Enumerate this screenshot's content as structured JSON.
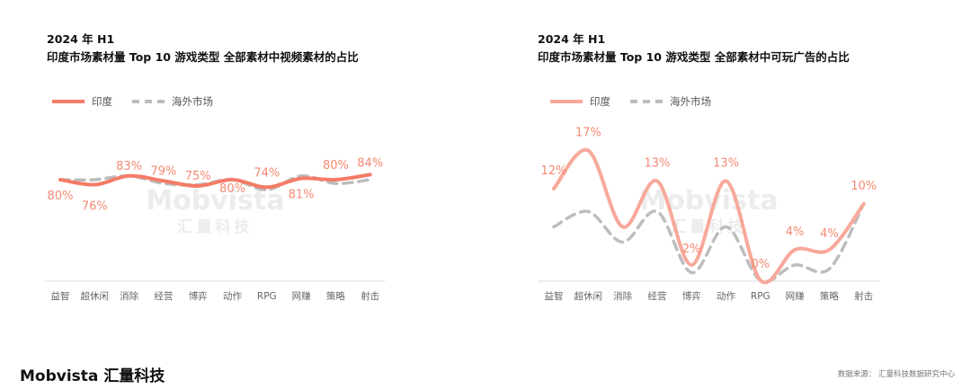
{
  "chart_data": [
    {
      "type": "line",
      "title_line1": "2024 年 H1",
      "title_line2": "印度市场素材量 Top 10 游戏类型  全部素材中视频素材的占比",
      "categories": [
        "益智",
        "超休闲",
        "消除",
        "经营",
        "博弈",
        "动作",
        "RPG",
        "网赚",
        "策略",
        "射击"
      ],
      "series": [
        {
          "name": "印度",
          "color": "#f47b67",
          "dashed": false,
          "values": [
            80,
            76,
            83,
            79,
            75,
            80,
            74,
            81,
            80,
            84
          ],
          "labels": [
            "80%",
            "76%",
            "83%",
            "79%",
            "75%",
            "80%",
            "74%",
            "81%",
            "80%",
            "84%"
          ]
        },
        {
          "name": "海外市场",
          "color": "#bdbdbd",
          "dashed": true,
          "values": [
            80,
            80,
            83,
            77,
            76,
            80,
            72,
            83,
            77,
            80
          ]
        }
      ],
      "ylim": [
        0,
        100
      ],
      "legend": "top-left"
    },
    {
      "type": "line",
      "title_line1": "2024 年 H1",
      "title_line2": "印度市场素材量 Top 10 游戏类型  全部素材中可玩广告的占比",
      "categories": [
        "益智",
        "超休闲",
        "消除",
        "经营",
        "博弈",
        "动作",
        "RPG",
        "网赚",
        "策略",
        "射击"
      ],
      "series": [
        {
          "name": "印度",
          "color": "#f8a89a",
          "dashed": false,
          "values": [
            12,
            17,
            7,
            13,
            2,
            13,
            0,
            4,
            4,
            10
          ],
          "labels": [
            "12%",
            "17%",
            "",
            "13%",
            "2%",
            "13%",
            "0%",
            "4%",
            "4%",
            "10%"
          ]
        },
        {
          "name": "海外市场",
          "color": "#bdbdbd",
          "dashed": true,
          "values": [
            7,
            9,
            5,
            9,
            1,
            7,
            0,
            2,
            1.5,
            10
          ]
        }
      ],
      "ylim": [
        0,
        18
      ],
      "legend": "top-left"
    }
  ],
  "watermark": "Mobvista 汇量科技",
  "footer": {
    "brand": "Mobvista",
    "brand_cn": "汇量科技",
    "source": "数据来源： 汇量科技数据研究中心"
  },
  "label_color": "#f58a74"
}
